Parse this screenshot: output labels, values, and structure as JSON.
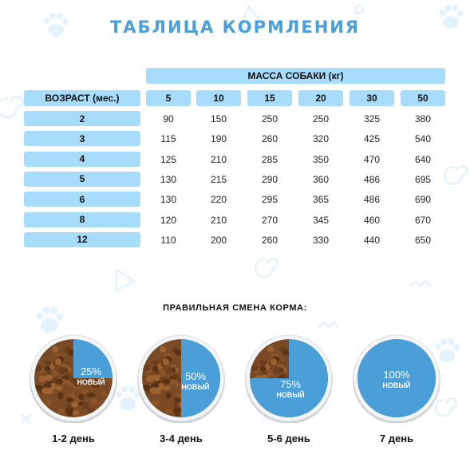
{
  "title": "ТАБЛИЦА КОРМЛЕНИЯ",
  "mass_header": "МАССА СОБАКИ (кг)",
  "age_header": "ВОЗРАСТ (мес.)",
  "weights": [
    "5",
    "10",
    "15",
    "20",
    "30",
    "50"
  ],
  "rows": [
    {
      "age": "2",
      "values": [
        "90",
        "150",
        "250",
        "250",
        "325",
        "380"
      ]
    },
    {
      "age": "3",
      "values": [
        "115",
        "190",
        "260",
        "320",
        "425",
        "540"
      ]
    },
    {
      "age": "4",
      "values": [
        "125",
        "210",
        "285",
        "350",
        "470",
        "640"
      ]
    },
    {
      "age": "5",
      "values": [
        "130",
        "215",
        "290",
        "360",
        "486",
        "695"
      ]
    },
    {
      "age": "6",
      "values": [
        "130",
        "220",
        "295",
        "365",
        "486",
        "690"
      ]
    },
    {
      "age": "8",
      "values": [
        "120",
        "210",
        "270",
        "345",
        "460",
        "670"
      ]
    },
    {
      "age": "12",
      "values": [
        "110",
        "200",
        "260",
        "330",
        "440",
        "650"
      ]
    }
  ],
  "transition_title": "ПРАВИЛЬНАЯ СМЕНА КОРМА:",
  "new_label": "НОВЫЙ",
  "colors": {
    "accent": "#4a9fd8",
    "pill": "#a8dcfb",
    "new_food": "#4a9fd8",
    "old_food": "#7a4a24"
  },
  "stages": [
    {
      "day": "1-2 день",
      "percent_text": "25%",
      "fraction": 0.25
    },
    {
      "day": "3-4 день",
      "percent_text": "50%",
      "fraction": 0.5
    },
    {
      "day": "5-6 день",
      "percent_text": "75%",
      "fraction": 0.75
    },
    {
      "day": "7 день",
      "percent_text": "100%",
      "fraction": 1.0
    }
  ]
}
